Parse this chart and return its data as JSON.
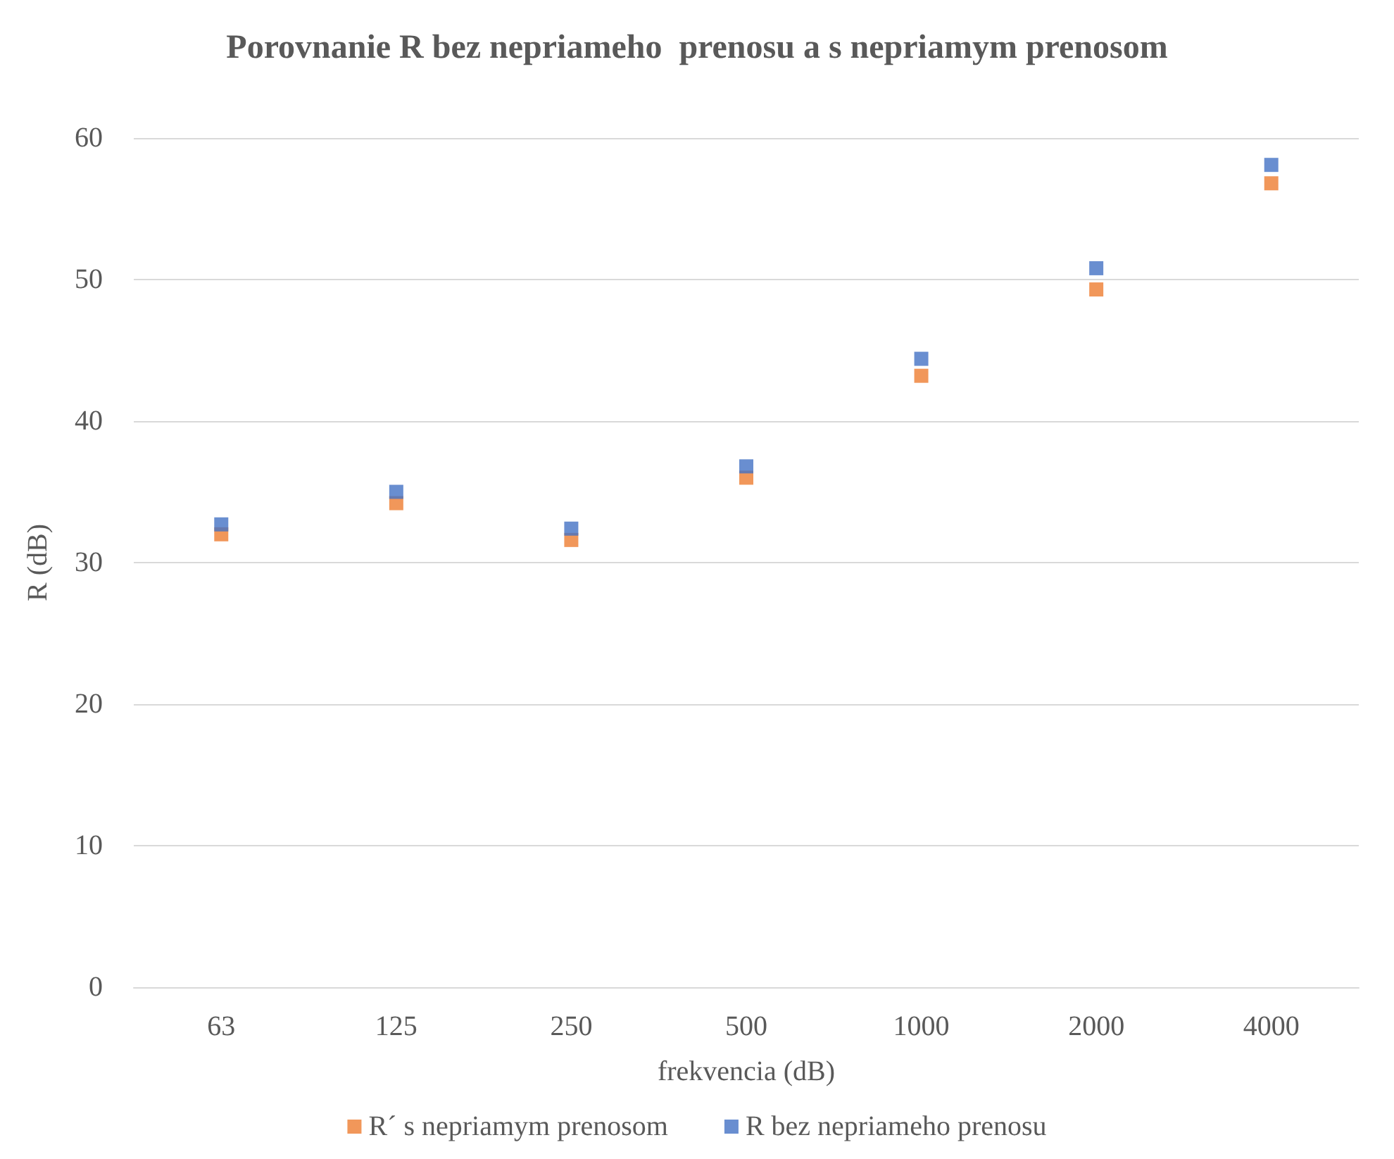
{
  "chart_data": {
    "type": "scatter",
    "title": "Porovnanie R bez nepriameho  prenosu a s nepriamym prenosom",
    "xlabel": "frekvencia (dB)",
    "ylabel": "R (dB)",
    "categories": [
      "63",
      "125",
      "250",
      "500",
      "1000",
      "2000",
      "4000"
    ],
    "series": [
      {
        "name": "R´ s nepriamym prenosom",
        "color": "#ed7d31",
        "values": [
          32.0,
          34.2,
          31.6,
          36.0,
          43.2,
          49.3,
          56.8
        ]
      },
      {
        "name": "R bez nepriameho prenosu",
        "color": "#4472c4",
        "values": [
          32.7,
          35.0,
          32.4,
          36.8,
          44.4,
          50.8,
          58.1
        ]
      }
    ],
    "ylim": [
      0,
      60
    ],
    "yticks": [
      0,
      10,
      20,
      30,
      40,
      50,
      60
    ],
    "grid": "y",
    "legend": "bottom",
    "marker": "square"
  }
}
